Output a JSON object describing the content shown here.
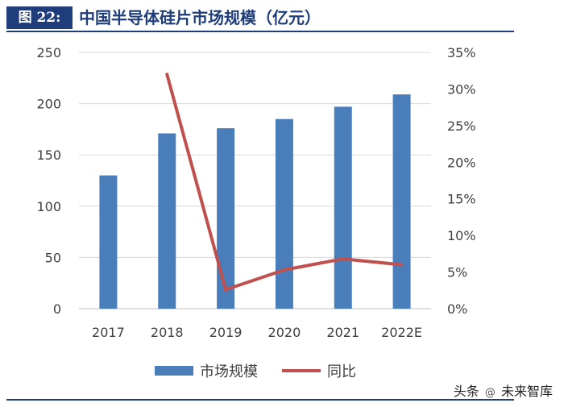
{
  "header": {
    "figure_label": "图 22:",
    "title": "中国半导体硅片市场规模（亿元）"
  },
  "chart_data": {
    "type": "bar",
    "title": "中国半导体硅片市场规模（亿元）",
    "categories": [
      "2017",
      "2018",
      "2019",
      "2020",
      "2021",
      "2022E"
    ],
    "series": [
      {
        "name": "市场规模",
        "type": "bar",
        "axis": "left",
        "color": "#4a7ebb",
        "values": [
          130,
          171,
          176,
          185,
          197,
          209
        ]
      },
      {
        "name": "同比",
        "type": "line",
        "axis": "right",
        "color": "#c0504d",
        "values": [
          null,
          32.0,
          2.6,
          5.3,
          6.8,
          6.0
        ]
      }
    ],
    "y_left": {
      "min": 0,
      "max": 250,
      "ticks": [
        0,
        50,
        100,
        150,
        200,
        250
      ]
    },
    "y_right": {
      "min": 0,
      "max": 35,
      "ticks": [
        "0%",
        "5%",
        "10%",
        "15%",
        "20%",
        "25%",
        "30%",
        "35%"
      ]
    },
    "grid": true,
    "legend": {
      "position": "bottom",
      "entries": [
        "市场规模",
        "同比"
      ]
    }
  },
  "watermark": {
    "prefix": "头条",
    "name": "未来智库"
  }
}
